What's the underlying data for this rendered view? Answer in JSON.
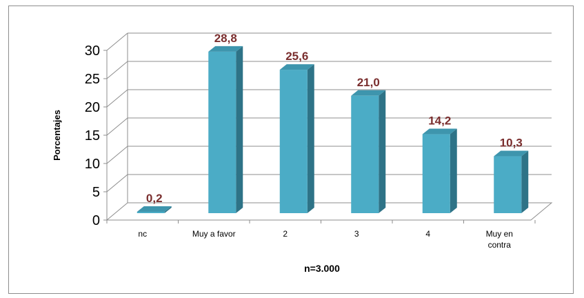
{
  "chart_data": {
    "type": "bar",
    "categories": [
      "nc",
      "Muy a favor",
      "2",
      "3",
      "4",
      "Muy en contra"
    ],
    "values": [
      0.2,
      28.8,
      25.6,
      21.0,
      14.2,
      10.3
    ],
    "value_labels": [
      "0,2",
      "28,8",
      "25,6",
      "21,0",
      "14,2",
      "10,3"
    ],
    "title": "",
    "xlabel": "n=3.000",
    "ylabel": "Porcentajes",
    "ylim": [
      0,
      30
    ],
    "yticks": [
      "0",
      "5",
      "10",
      "15",
      "20",
      "25",
      "30"
    ],
    "grid": true,
    "legend": "none",
    "colors": {
      "bar_front": "#4bacc6",
      "bar_side": "#2e7387",
      "bar_top": "#3e95ad",
      "label": "#7a2e2e",
      "grid": "#8c8c8c"
    }
  }
}
